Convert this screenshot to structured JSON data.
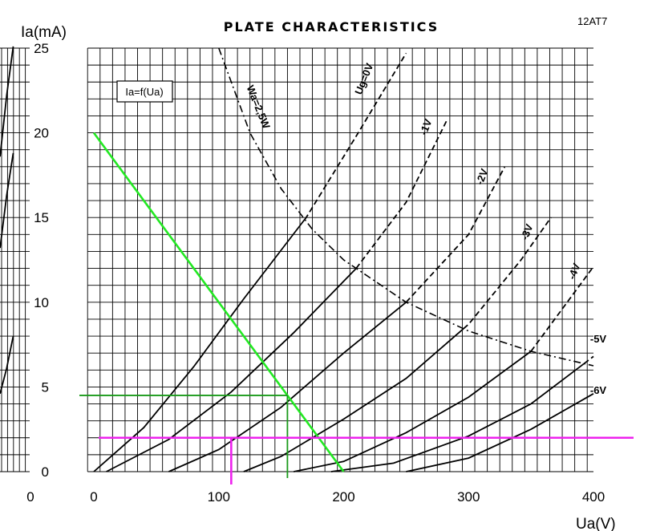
{
  "chart_data": {
    "type": "line",
    "title": "PLATE CHARACTERISTICS",
    "tube": "12AT7",
    "function_label": "Ia=f(Ua)",
    "xlabel": "Ua(V)",
    "ylabel": "Ia(mA)",
    "xlim": [
      0,
      400
    ],
    "ylim": [
      0,
      25
    ],
    "x_ticks": [
      "0",
      "100",
      "200",
      "300",
      "400"
    ],
    "y_ticks": [
      "0",
      "5",
      "10",
      "15",
      "20",
      "25"
    ],
    "left_panel_x_tick": "0",
    "grid": true,
    "series": [
      {
        "name": "Ug=0V",
        "points": [
          [
            0,
            0
          ],
          [
            40,
            2.6
          ],
          [
            80,
            6.2
          ],
          [
            120,
            10.2
          ],
          [
            170,
            15
          ],
          [
            210,
            19.8
          ],
          [
            250,
            24.7
          ]
        ]
      },
      {
        "name": "-1V",
        "points": [
          [
            10,
            0
          ],
          [
            60,
            1.9
          ],
          [
            110,
            4.7
          ],
          [
            160,
            8.2
          ],
          [
            210,
            12
          ],
          [
            250,
            15.9
          ],
          [
            283,
            20.8
          ]
        ]
      },
      {
        "name": "-2V",
        "points": [
          [
            60,
            0
          ],
          [
            100,
            1.3
          ],
          [
            150,
            3.8
          ],
          [
            200,
            7
          ],
          [
            250,
            10
          ],
          [
            300,
            14
          ],
          [
            329,
            18
          ]
        ]
      },
      {
        "name": "-3V",
        "points": [
          [
            120,
            0
          ],
          [
            150,
            0.9
          ],
          [
            200,
            3.1
          ],
          [
            250,
            5.5
          ],
          [
            300,
            8.7
          ],
          [
            342,
            12.5
          ],
          [
            366,
            15
          ]
        ]
      },
      {
        "name": "-4V",
        "points": [
          [
            160,
            0
          ],
          [
            200,
            0.6
          ],
          [
            250,
            2.3
          ],
          [
            300,
            4.4
          ],
          [
            350,
            7.1
          ],
          [
            400,
            12.1
          ]
        ]
      },
      {
        "name": "-5V",
        "points": [
          [
            190,
            0
          ],
          [
            240,
            0.5
          ],
          [
            300,
            2.1
          ],
          [
            350,
            4
          ],
          [
            400,
            6.8
          ]
        ]
      },
      {
        "name": "-6V",
        "points": [
          [
            250,
            0
          ],
          [
            300,
            0.8
          ],
          [
            350,
            2.5
          ],
          [
            400,
            4.6
          ]
        ]
      }
    ],
    "dissipation_curve": {
      "name": "Wa=2,5W",
      "points": [
        [
          100,
          25
        ],
        [
          125,
          20
        ],
        [
          150,
          16.7
        ],
        [
          175,
          14.3
        ],
        [
          200,
          12.5
        ],
        [
          250,
          10
        ],
        [
          300,
          8.3
        ],
        [
          350,
          7.1
        ],
        [
          400,
          6.25
        ]
      ]
    },
    "load_line": {
      "points": [
        [
          0,
          20
        ],
        [
          200,
          0
        ]
      ]
    },
    "operating_point": {
      "x": 155,
      "y": 4.5
    },
    "horizontal_line": {
      "y": 2
    },
    "vertical_marker": {
      "x": 110
    },
    "side_panel_curves": [
      {
        "points": [
          [
            -45,
            18.6
          ],
          [
            -35,
            22.2
          ],
          [
            -25,
            25.1
          ]
        ]
      },
      {
        "points": [
          [
            -45,
            13.2
          ],
          [
            -35,
            16.3
          ],
          [
            -25,
            18.8
          ]
        ]
      },
      {
        "points": [
          [
            -45,
            4.6
          ],
          [
            -35,
            6.1
          ],
          [
            -25,
            8
          ]
        ]
      }
    ]
  }
}
